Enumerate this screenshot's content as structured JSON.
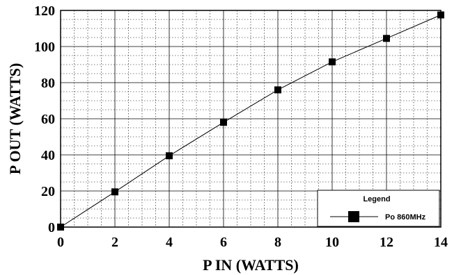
{
  "chart_data": {
    "type": "line",
    "title": "",
    "xlabel": "P IN (WATTS)",
    "ylabel": "P OUT (WATTS)",
    "xlim": [
      0,
      14
    ],
    "ylim": [
      0,
      120
    ],
    "x_major_ticks": [
      0,
      2,
      4,
      6,
      8,
      10,
      12,
      14
    ],
    "y_major_ticks": [
      0,
      20,
      40,
      60,
      80,
      100,
      120
    ],
    "x_minor_step": 0.5,
    "y_minor_step": 5,
    "grid": "major solid, minor dotted",
    "legend": {
      "title": "Legend",
      "placement": "bottom-right",
      "entries": [
        "Po 860MHz"
      ]
    },
    "series": [
      {
        "name": "Po 860MHz",
        "marker": "square",
        "color": "#000000",
        "x": [
          0,
          2,
          4,
          6,
          8,
          10,
          12,
          14
        ],
        "y": [
          0,
          19.5,
          39.5,
          58,
          76,
          91.5,
          104.5,
          117.5
        ]
      }
    ]
  }
}
